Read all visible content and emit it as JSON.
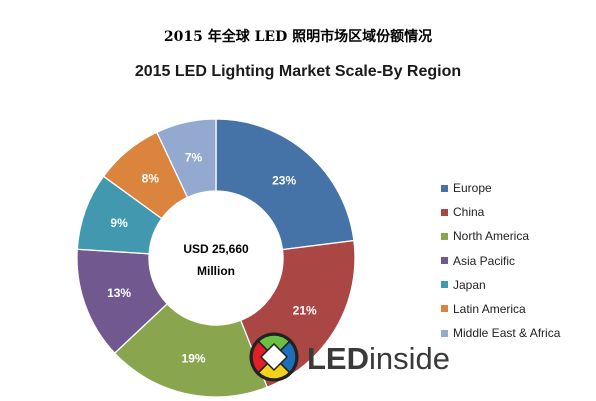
{
  "header": {
    "title_cn": "2015 年全球 LED 照明市场区域份额情况"
  },
  "chart_data": {
    "type": "pie",
    "donut": true,
    "title": "2015 LED Lighting Market Scale-By Region",
    "center_label": [
      "USD 25,660",
      "Million"
    ],
    "legend_position": "right",
    "slices": [
      {
        "name": "Europe",
        "value": 23,
        "label": "23%",
        "color": "#4572A7"
      },
      {
        "name": "China",
        "value": 21,
        "label": "21%",
        "color": "#AA4643"
      },
      {
        "name": "North America",
        "value": 19,
        "label": "19%",
        "color": "#89A54E"
      },
      {
        "name": "Asia Pacific",
        "value": 13,
        "label": "13%",
        "color": "#71588F"
      },
      {
        "name": "Japan",
        "value": 9,
        "label": "9%",
        "color": "#4198AF"
      },
      {
        "name": "Latin America",
        "value": 8,
        "label": "8%",
        "color": "#DB843D"
      },
      {
        "name": "Middle East & Africa",
        "value": 7,
        "label": "7%",
        "color": "#93A9CF"
      }
    ]
  },
  "logo": {
    "icon": "ledinside-logo-icon",
    "text_bold": "LED",
    "text_light": "inside"
  }
}
